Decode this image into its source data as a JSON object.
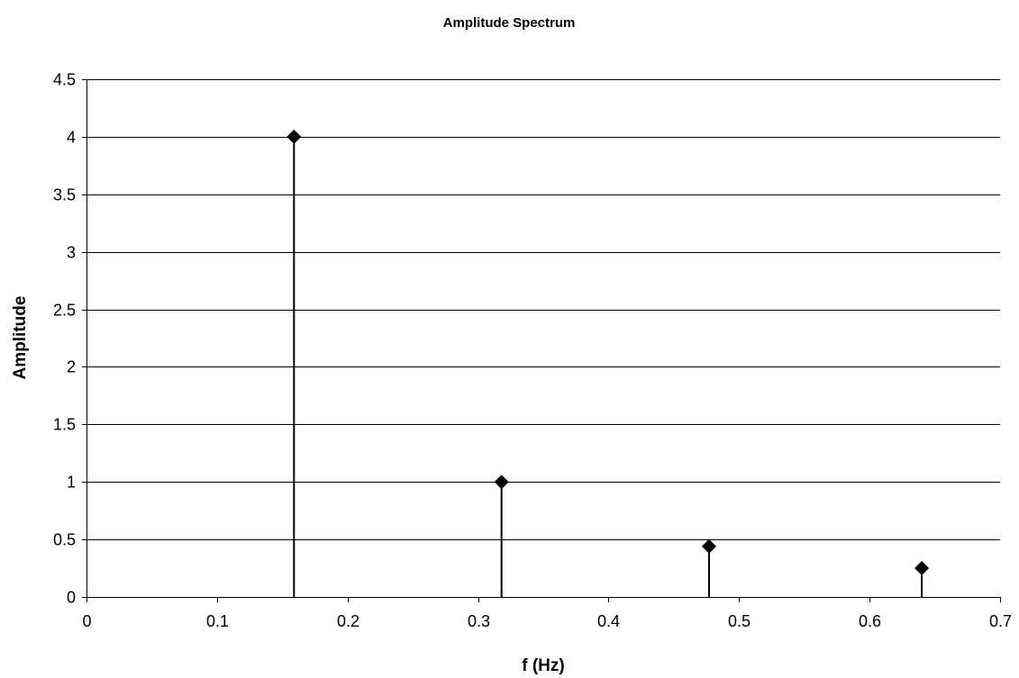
{
  "chart_data": {
    "type": "scatter",
    "title": "Amplitude Spectrum",
    "xlabel": "f (Hz)",
    "ylabel": "Amplitude",
    "xlim": [
      0,
      0.7
    ],
    "ylim": [
      0,
      4.5
    ],
    "x_ticks": [
      "0",
      "0.1",
      "0.2",
      "0.3",
      "0.4",
      "0.5",
      "0.6",
      "0.7"
    ],
    "y_ticks": [
      "0",
      "0.5",
      "1",
      "1.5",
      "2",
      "2.5",
      "3",
      "3.5",
      "4",
      "4.5"
    ],
    "grid": true,
    "legend": "none",
    "marker": "diamond",
    "stems": true,
    "color": "#000000",
    "points": [
      {
        "x": 0.159,
        "y": 4.0
      },
      {
        "x": 0.318,
        "y": 1.0
      },
      {
        "x": 0.477,
        "y": 0.44
      },
      {
        "x": 0.64,
        "y": 0.25
      }
    ]
  }
}
